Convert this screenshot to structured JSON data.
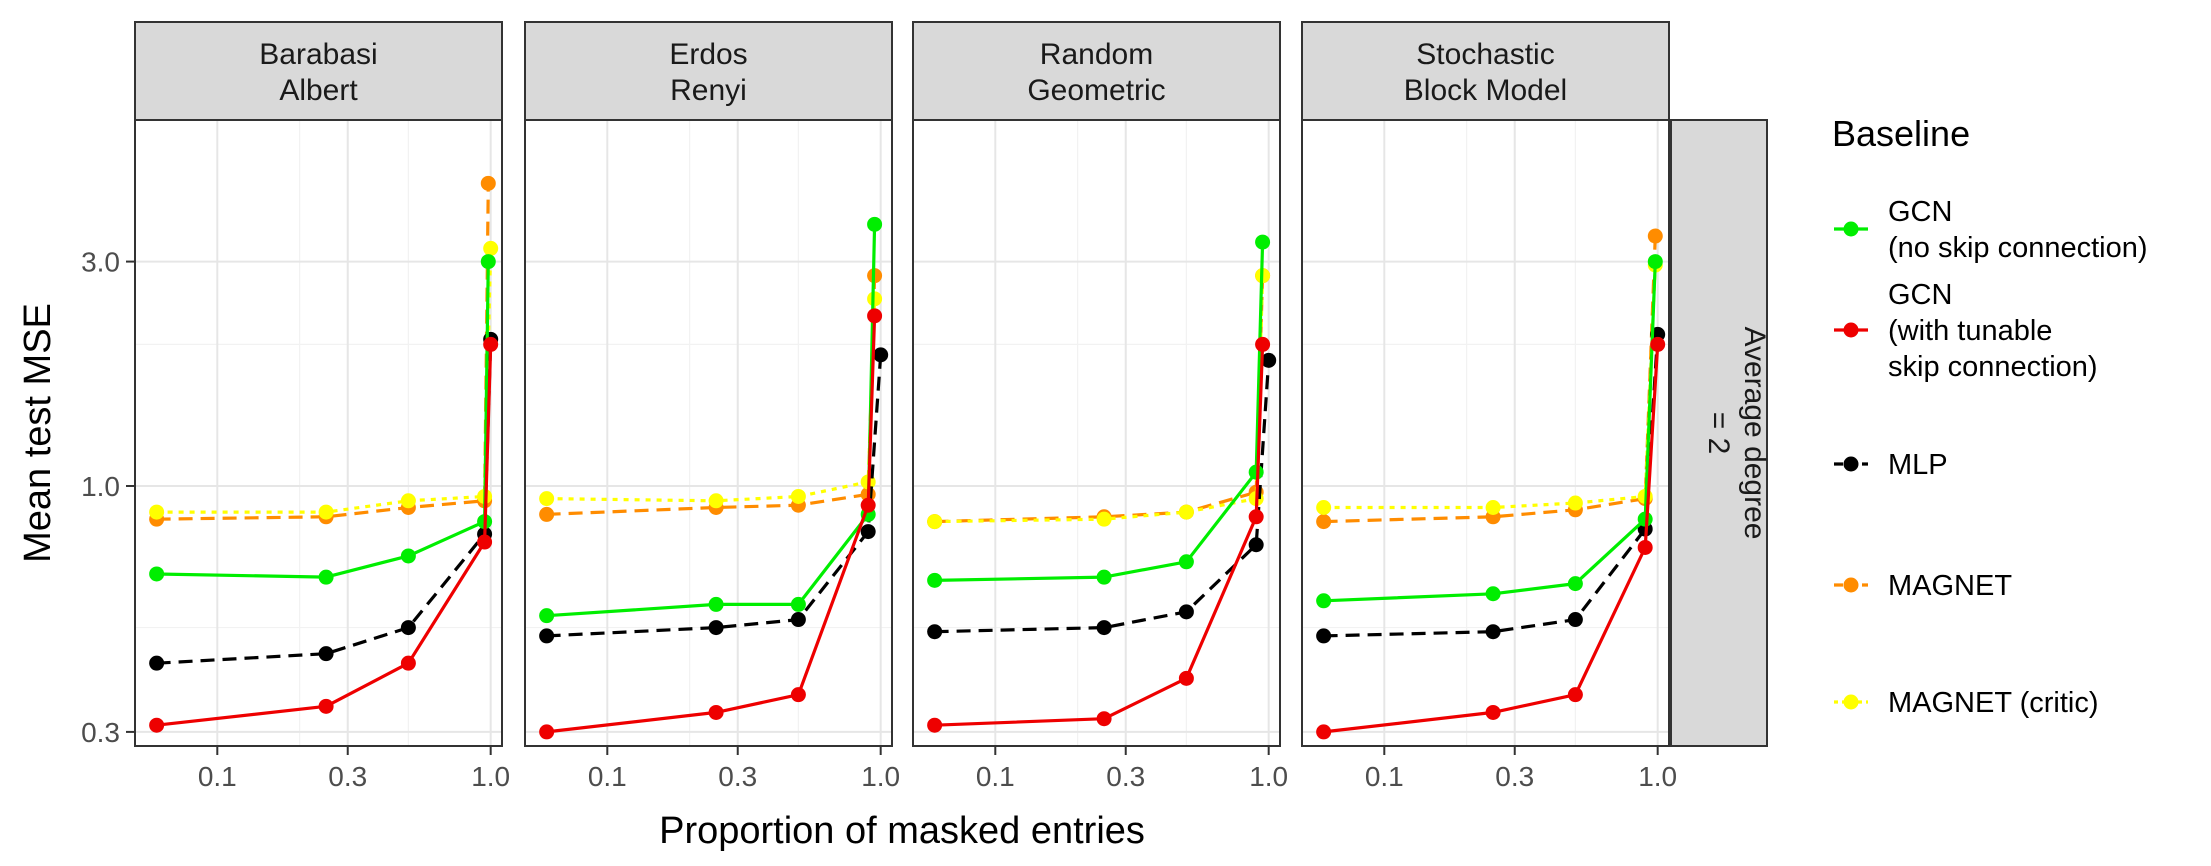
{
  "chart_data": {
    "type": "line",
    "xlabel": "Proportion of masked entries",
    "ylabel": "Mean test MSE",
    "x_scale": "log10",
    "y_scale": "log10",
    "xlim": [
      0.05,
      1.1
    ],
    "ylim": [
      0.28,
      6.0
    ],
    "x_ticks": [
      0.1,
      0.3,
      1.0
    ],
    "x_tick_labels": [
      "0.1",
      "0.3",
      "1.0"
    ],
    "y_ticks": [
      0.3,
      1.0,
      3.0
    ],
    "y_tick_labels": [
      "0.3",
      "1.0",
      "3.0"
    ],
    "row_strip": "Average degree\n= 2",
    "legend_title": "Baseline",
    "series_meta": [
      {
        "name": "GCN\n(no skip connection)",
        "color": "#00ee00",
        "dash": "solid"
      },
      {
        "name": "GCN\n(with tunable\nskip connection)",
        "color": "#ee0000",
        "dash": "solid"
      },
      {
        "name": "MLP",
        "color": "#000000",
        "dash": "dashed"
      },
      {
        "name": "MAGNET",
        "color": "#ff8c00",
        "dash": "dashed"
      },
      {
        "name": "MAGNET (critic)",
        "color": "#ffff00",
        "dash": "dotted"
      }
    ],
    "panels": [
      {
        "title": "Barabasi\nAlbert",
        "series": [
          {
            "x": [
              0.06,
              0.25,
              0.5,
              0.95,
              0.98
            ],
            "y": [
              0.65,
              0.64,
              0.71,
              0.84,
              3.0
            ]
          },
          {
            "x": [
              0.06,
              0.25,
              0.5,
              0.95,
              1.0
            ],
            "y": [
              0.31,
              0.34,
              0.42,
              0.76,
              2.0
            ]
          },
          {
            "x": [
              0.06,
              0.25,
              0.5,
              0.95,
              1.0
            ],
            "y": [
              0.42,
              0.44,
              0.5,
              0.79,
              2.05
            ]
          },
          {
            "x": [
              0.06,
              0.25,
              0.5,
              0.95,
              0.98
            ],
            "y": [
              0.85,
              0.86,
              0.9,
              0.93,
              4.4
            ]
          },
          {
            "x": [
              0.06,
              0.25,
              0.5,
              0.95,
              1.0
            ],
            "y": [
              0.88,
              0.88,
              0.93,
              0.95,
              3.2
            ]
          }
        ]
      },
      {
        "title": "Erdos\nRenyi",
        "series": [
          {
            "x": [
              0.06,
              0.25,
              0.5,
              0.9,
              0.95
            ],
            "y": [
              0.53,
              0.56,
              0.56,
              0.87,
              3.6
            ]
          },
          {
            "x": [
              0.06,
              0.25,
              0.5,
              0.9,
              0.95
            ],
            "y": [
              0.3,
              0.33,
              0.36,
              0.91,
              2.3
            ]
          },
          {
            "x": [
              0.06,
              0.25,
              0.5,
              0.9,
              1.0
            ],
            "y": [
              0.48,
              0.5,
              0.52,
              0.8,
              1.9
            ]
          },
          {
            "x": [
              0.06,
              0.25,
              0.5,
              0.9,
              0.95
            ],
            "y": [
              0.87,
              0.9,
              0.91,
              0.96,
              2.8
            ]
          },
          {
            "x": [
              0.06,
              0.25,
              0.5,
              0.9,
              0.95
            ],
            "y": [
              0.94,
              0.93,
              0.95,
              1.02,
              2.5
            ]
          }
        ]
      },
      {
        "title": "Random\nGeometric",
        "series": [
          {
            "x": [
              0.06,
              0.25,
              0.5,
              0.9,
              0.95
            ],
            "y": [
              0.63,
              0.64,
              0.69,
              1.07,
              3.3
            ]
          },
          {
            "x": [
              0.06,
              0.25,
              0.5,
              0.9,
              0.95
            ],
            "y": [
              0.31,
              0.32,
              0.39,
              0.86,
              2.0
            ]
          },
          {
            "x": [
              0.06,
              0.25,
              0.5,
              0.9,
              1.0
            ],
            "y": [
              0.49,
              0.5,
              0.54,
              0.75,
              1.85
            ]
          },
          {
            "x": [
              0.06,
              0.25,
              0.5,
              0.9,
              0.95
            ],
            "y": [
              0.84,
              0.86,
              0.88,
              0.97,
              2.8
            ]
          },
          {
            "x": [
              0.06,
              0.25,
              0.5,
              0.9,
              0.95
            ],
            "y": [
              0.84,
              0.85,
              0.88,
              0.94,
              2.8
            ]
          }
        ]
      },
      {
        "title": "Stochastic\nBlock Model",
        "series": [
          {
            "x": [
              0.06,
              0.25,
              0.5,
              0.9,
              0.98
            ],
            "y": [
              0.57,
              0.59,
              0.62,
              0.85,
              3.0
            ]
          },
          {
            "x": [
              0.06,
              0.25,
              0.5,
              0.9,
              1.0
            ],
            "y": [
              0.3,
              0.33,
              0.36,
              0.74,
              2.0
            ]
          },
          {
            "x": [
              0.06,
              0.25,
              0.5,
              0.9,
              1.0
            ],
            "y": [
              0.48,
              0.49,
              0.52,
              0.81,
              2.1
            ]
          },
          {
            "x": [
              0.06,
              0.25,
              0.5,
              0.9,
              0.98
            ],
            "y": [
              0.84,
              0.86,
              0.89,
              0.94,
              3.4
            ]
          },
          {
            "x": [
              0.06,
              0.25,
              0.5,
              0.9,
              0.98
            ],
            "y": [
              0.9,
              0.9,
              0.92,
              0.95,
              2.95
            ]
          }
        ]
      }
    ]
  }
}
